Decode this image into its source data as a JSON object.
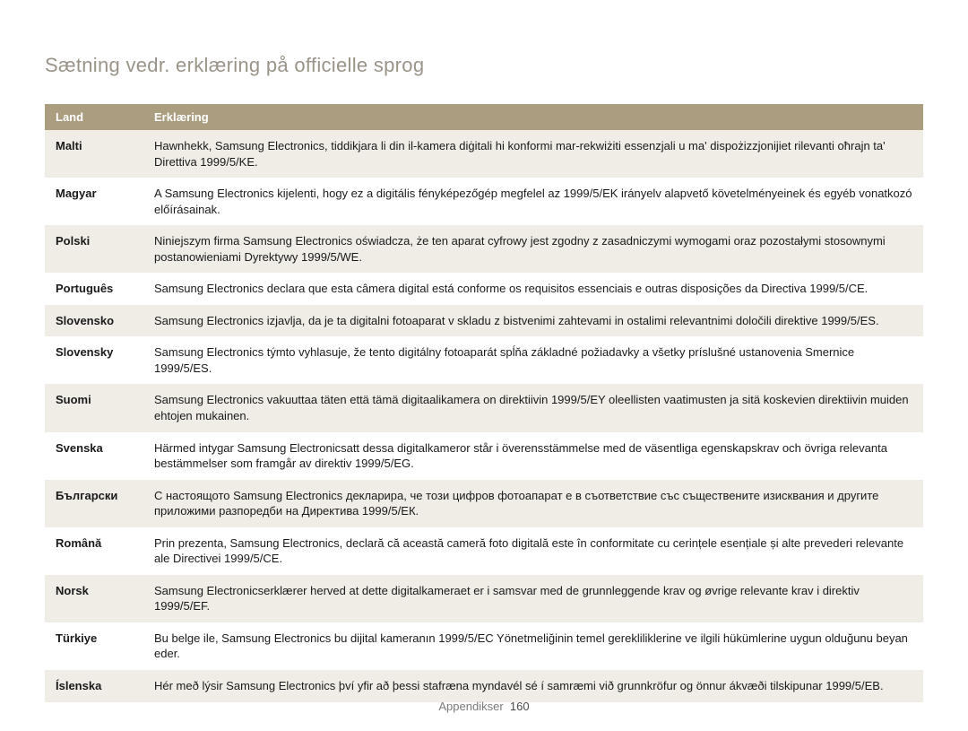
{
  "title": "Sætning vedr. erklæring på officielle sprog",
  "table": {
    "headers": {
      "country": "Land",
      "declaration": "Erklæring"
    },
    "rows": [
      {
        "lang": "Malti",
        "text": "Hawnhekk, Samsung Electronics, tiddikjara li din il-kamera diġitali hi konformi mar-rekwiżiti essenzjali u ma' dispożizzjonijiet rilevanti oħrajn ta' Direttiva 1999/5/KE."
      },
      {
        "lang": "Magyar",
        "text": "A Samsung Electronics kijelenti, hogy ez a digitális fényképezőgép megfelel az 1999/5/EK irányelv alapvető követelményeinek és egyéb vonatkozó előírásainak."
      },
      {
        "lang": "Polski",
        "text": "Niniejszym firma Samsung Electronics oświadcza, że ten aparat cyfrowy jest zgodny z zasadniczymi wymogami oraz pozostałymi stosownymi postanowieniami Dyrektywy 1999/5/WE."
      },
      {
        "lang": "Português",
        "text": "Samsung Electronics declara que esta câmera digital está conforme os requisitos essenciais e outras disposições da Directiva 1999/5/CE."
      },
      {
        "lang": "Slovensko",
        "text": "Samsung Electronics izjavlja, da je ta digitalni fotoaparat v skladu z bistvenimi zahtevami in ostalimi relevantnimi določili direktive 1999/5/ES."
      },
      {
        "lang": "Slovensky",
        "text": "Samsung Electronics týmto vyhlasuje, že tento digitálny fotoaparát spĺňa základné požiadavky a všetky príslušné ustanovenia Smernice 1999/5/ES."
      },
      {
        "lang": "Suomi",
        "text": "Samsung Electronics vakuuttaa täten että tämä digitaalikamera on direktiivin 1999/5/EY oleellisten vaatimusten ja sitä koskevien direktiivin muiden ehtojen mukainen."
      },
      {
        "lang": "Svenska",
        "text": "Härmed intygar Samsung Electronicsatt dessa digitalkameror står i överensstämmelse med de väsentliga egenskapskrav och övriga relevanta bestämmelser som framgår av direktiv 1999/5/EG."
      },
      {
        "lang": "Български",
        "text": "С настоящото Samsung Electronics декларира, че този цифров фотоапарат е в съответствие със съществените изисквания и другите приложими разпоредби на Директива 1999/5/ЕК."
      },
      {
        "lang": "Română",
        "text": "Prin prezenta, Samsung Electronics, declară că această cameră foto digitală este în conformitate cu cerințele esențiale și alte prevederi relevante ale Directivei 1999/5/CE."
      },
      {
        "lang": "Norsk",
        "text": "Samsung Electronicserklærer herved at dette digitalkameraet er i samsvar med de grunnleggende krav og øvrige relevante krav i direktiv 1999/5/EF."
      },
      {
        "lang": "Türkiye",
        "text": "Bu belge ile, Samsung Electronics bu dijital kameranın 1999/5/EC Yönetmeliğinin temel gerekliliklerine ve ilgili hükümlerine uygun olduğunu beyan eder."
      },
      {
        "lang": "Íslenska",
        "text": "Hér með lýsir Samsung Electronics því yfir að þessi stafræna myndavél sé í samræmi við grunnkröfur og önnur ákvæði tilskipunar 1999/5/EB."
      }
    ]
  },
  "footer": {
    "section": "Appendikser",
    "page": "160"
  },
  "colors": {
    "header_bg": "#ab9e80",
    "header_text": "#ffffff",
    "row_odd": "#efede6",
    "row_even": "#ffffff",
    "title_color": "#9a9488",
    "body_text": "#1a1a1a",
    "footer_text": "#7a7a7a"
  }
}
